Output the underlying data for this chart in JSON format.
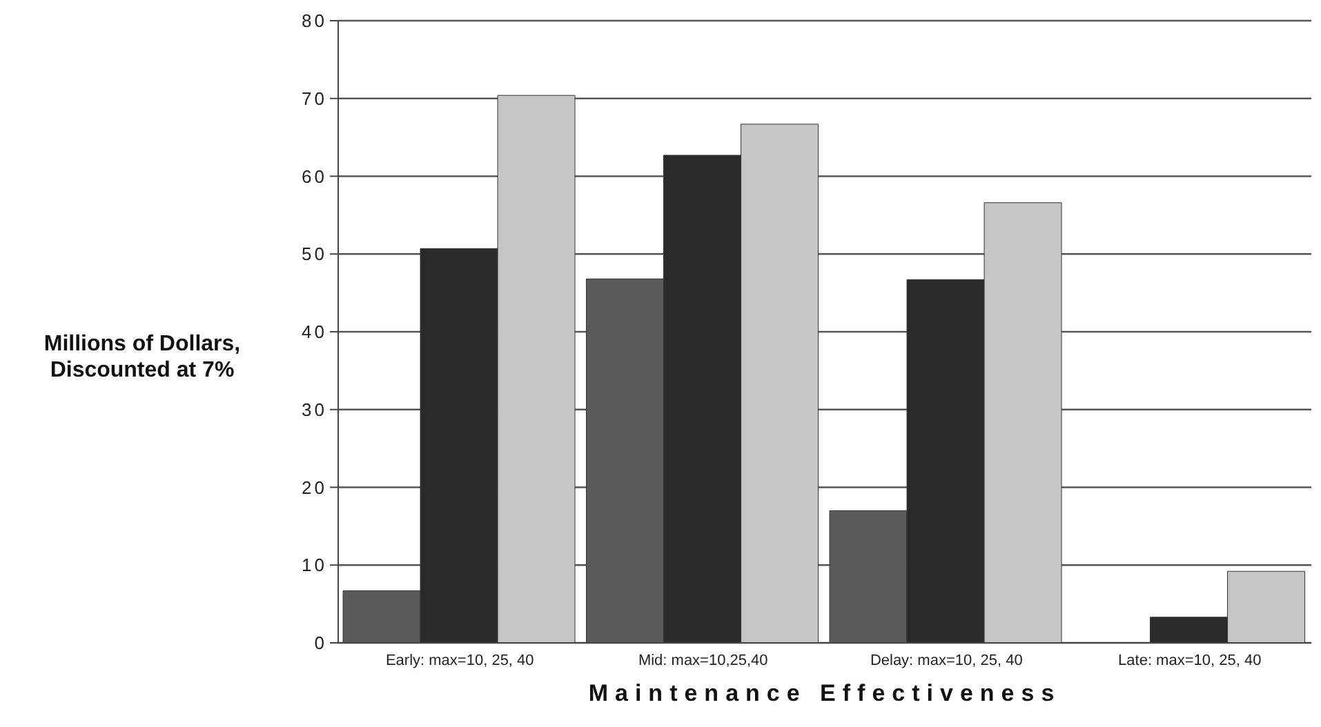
{
  "chart_data": {
    "type": "bar",
    "xlabel": "Maintenance Effectiveness",
    "ylabel": "Millions of Dollars, Discounted at 7%",
    "categories": [
      "Early: max=10, 25, 40",
      "Mid: max=10,25,40",
      "Delay: max=10, 25, 40",
      "Late: max=10, 25, 40"
    ],
    "series": [
      {
        "color": "#5a5a5a",
        "values": [
          6.7,
          46.8,
          17.0,
          0
        ]
      },
      {
        "color": "#2a2a2a",
        "values": [
          50.7,
          62.7,
          46.7,
          3.3
        ]
      },
      {
        "color": "#c6c6c6",
        "values": [
          70.4,
          66.7,
          56.6,
          9.2
        ]
      }
    ],
    "ylim": [
      0,
      80
    ],
    "yticks": [
      0,
      10,
      20,
      30,
      40,
      50,
      60,
      70,
      80
    ],
    "grid": "y",
    "legend": false
  }
}
